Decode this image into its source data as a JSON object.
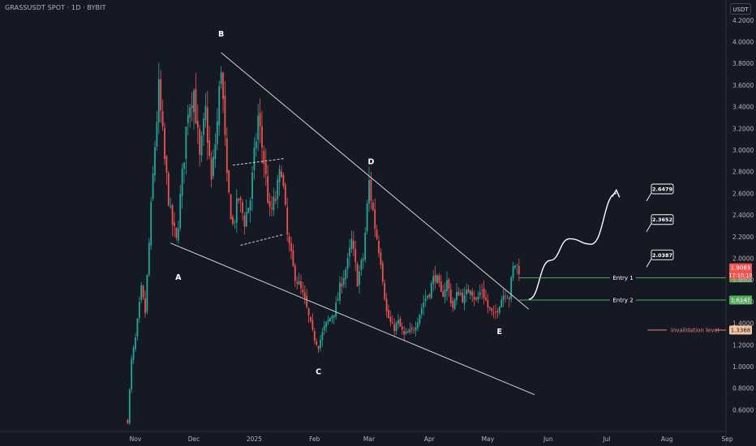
{
  "header": {
    "symbol_title": "GRASSUSDT SPOT · 1D · BYBIT",
    "currency": "USDT"
  },
  "colors": {
    "background": "#151924",
    "up": "#26a69a",
    "down": "#ef5350",
    "annotation": "#ffffff",
    "entry_line": "#4caf50",
    "invalidation_line": "#f77c80"
  },
  "chart_data": {
    "type": "candlestick",
    "x_axis_labels": [
      "Nov",
      "Dec",
      "2025",
      "Feb",
      "Mar",
      "Apr",
      "May",
      "Jun",
      "Jul",
      "Aug",
      "Sep"
    ],
    "y_axis_ticks": [
      "4.2000",
      "4.0000",
      "3.8000",
      "3.6000",
      "3.4000",
      "3.2000",
      "3.0000",
      "2.8000",
      "2.6000",
      "2.4000",
      "2.2000",
      "2.0000",
      "1.8000",
      "1.6000",
      "1.4000",
      "1.2000",
      "1.0000",
      "0.8000",
      "0.6000"
    ],
    "ylim": [
      0.45,
      4.3
    ],
    "grid": false,
    "price_path": [
      {
        "date": "2024-10-28",
        "price": 0.5
      },
      {
        "date": "2024-10-30",
        "price": 1.05
      },
      {
        "date": "2024-11-01",
        "price": 1.25
      },
      {
        "date": "2024-11-04",
        "price": 1.7
      },
      {
        "date": "2024-11-06",
        "price": 1.5
      },
      {
        "date": "2024-11-09",
        "price": 2.45
      },
      {
        "date": "2024-11-11",
        "price": 3.05
      },
      {
        "date": "2024-11-13",
        "price": 3.55
      },
      {
        "date": "2024-11-16",
        "price": 2.9
      },
      {
        "date": "2024-11-19",
        "price": 2.4
      },
      {
        "date": "2024-11-22",
        "price": 2.15
      },
      {
        "date": "2024-11-25",
        "price": 2.75
      },
      {
        "date": "2024-11-28",
        "price": 3.4
      },
      {
        "date": "2024-12-01",
        "price": 3.55
      },
      {
        "date": "2024-12-04",
        "price": 2.9
      },
      {
        "date": "2024-12-07",
        "price": 3.35
      },
      {
        "date": "2024-12-10",
        "price": 2.7
      },
      {
        "date": "2024-12-13",
        "price": 3.25
      },
      {
        "date": "2024-12-15",
        "price": 3.8
      },
      {
        "date": "2024-12-18",
        "price": 2.7
      },
      {
        "date": "2024-12-21",
        "price": 2.3
      },
      {
        "date": "2024-12-24",
        "price": 2.55
      },
      {
        "date": "2024-12-27",
        "price": 2.35
      },
      {
        "date": "2024-12-30",
        "price": 2.55
      },
      {
        "date": "2025-01-03",
        "price": 3.3
      },
      {
        "date": "2025-01-06",
        "price": 2.9
      },
      {
        "date": "2025-01-09",
        "price": 2.4
      },
      {
        "date": "2025-01-12",
        "price": 2.55
      },
      {
        "date": "2025-01-15",
        "price": 2.85
      },
      {
        "date": "2025-01-18",
        "price": 2.2
      },
      {
        "date": "2025-01-21",
        "price": 1.9
      },
      {
        "date": "2025-01-24",
        "price": 1.75
      },
      {
        "date": "2025-01-27",
        "price": 1.6
      },
      {
        "date": "2025-01-31",
        "price": 1.3
      },
      {
        "date": "2025-02-03",
        "price": 1.2
      },
      {
        "date": "2025-02-06",
        "price": 1.35
      },
      {
        "date": "2025-02-09",
        "price": 1.45
      },
      {
        "date": "2025-02-12",
        "price": 1.55
      },
      {
        "date": "2025-02-15",
        "price": 1.8
      },
      {
        "date": "2025-02-18",
        "price": 1.95
      },
      {
        "date": "2025-02-20",
        "price": 2.15
      },
      {
        "date": "2025-02-23",
        "price": 1.8
      },
      {
        "date": "2025-02-26",
        "price": 2.0
      },
      {
        "date": "2025-03-01",
        "price": 2.7
      },
      {
        "date": "2025-03-04",
        "price": 2.3
      },
      {
        "date": "2025-03-07",
        "price": 2.0
      },
      {
        "date": "2025-03-10",
        "price": 1.5
      },
      {
        "date": "2025-03-13",
        "price": 1.35
      },
      {
        "date": "2025-03-16",
        "price": 1.4
      },
      {
        "date": "2025-03-19",
        "price": 1.28
      },
      {
        "date": "2025-03-23",
        "price": 1.32
      },
      {
        "date": "2025-03-26",
        "price": 1.45
      },
      {
        "date": "2025-03-29",
        "price": 1.6
      },
      {
        "date": "2025-04-01",
        "price": 1.7
      },
      {
        "date": "2025-04-04",
        "price": 1.85
      },
      {
        "date": "2025-04-07",
        "price": 1.65
      },
      {
        "date": "2025-04-10",
        "price": 1.78
      },
      {
        "date": "2025-04-13",
        "price": 1.55
      },
      {
        "date": "2025-04-16",
        "price": 1.7
      },
      {
        "date": "2025-04-19",
        "price": 1.62
      },
      {
        "date": "2025-04-22",
        "price": 1.75
      },
      {
        "date": "2025-04-25",
        "price": 1.6
      },
      {
        "date": "2025-04-28",
        "price": 1.72
      },
      {
        "date": "2025-05-01",
        "price": 1.55
      },
      {
        "date": "2025-05-04",
        "price": 1.45
      },
      {
        "date": "2025-05-07",
        "price": 1.6
      },
      {
        "date": "2025-05-10",
        "price": 1.7
      },
      {
        "date": "2025-05-12",
        "price": 1.65
      },
      {
        "date": "2025-05-14",
        "price": 1.9
      },
      {
        "date": "2025-05-15",
        "price": 1.95
      },
      {
        "date": "2025-05-17",
        "price": 1.91
      }
    ],
    "wave_labels": [
      {
        "label": "A",
        "date": "2024-11-23",
        "price": 1.8
      },
      {
        "label": "B",
        "date": "2024-12-15",
        "price": 4.05
      },
      {
        "label": "C",
        "date": "2025-02-03",
        "price": 0.93
      },
      {
        "label": "D",
        "date": "2025-03-02",
        "price": 2.87
      },
      {
        "label": "E",
        "date": "2025-05-07",
        "price": 1.3
      }
    ],
    "trendlines": [
      {
        "name": "upper-resistance",
        "from": {
          "date": "2024-12-15",
          "price": 3.9
        },
        "to": {
          "date": "2025-05-22",
          "price": 1.53
        }
      },
      {
        "name": "lower-support",
        "from": {
          "date": "2024-11-19",
          "price": 2.14
        },
        "to": {
          "date": "2025-05-25",
          "price": 0.74
        }
      }
    ],
    "flag_lines": [
      {
        "from": {
          "date": "2024-12-21",
          "price": 2.86
        },
        "to": {
          "date": "2025-01-16",
          "price": 2.92
        }
      },
      {
        "from": {
          "date": "2024-12-25",
          "price": 2.12
        },
        "to": {
          "date": "2025-01-16",
          "price": 2.22
        }
      }
    ],
    "projection_path": [
      {
        "date": "2025-05-22",
        "price": 1.62
      },
      {
        "date": "2025-06-02",
        "price": 1.98
      },
      {
        "date": "2025-06-12",
        "price": 2.18
      },
      {
        "date": "2025-06-23",
        "price": 2.13
      },
      {
        "date": "2025-07-06",
        "price": 2.6
      }
    ],
    "targets": [
      {
        "label": "2.6479",
        "date": "2025-07-24",
        "price": 2.6479
      },
      {
        "label": "2.3652",
        "date": "2025-07-24",
        "price": 2.3652
      },
      {
        "label": "2.0387",
        "date": "2025-07-24",
        "price": 2.0387
      }
    ],
    "horizontal_levels": [
      {
        "name": "entry-1",
        "label": "Entry 1",
        "price": 1.8194,
        "tag": "1.8194",
        "color": "#4caf50"
      },
      {
        "name": "entry-2",
        "label": "Entry 2",
        "price": 1.6147,
        "tag": "1.6147",
        "color": "#4caf50"
      },
      {
        "name": "invalidation",
        "label": "invalidation level",
        "price": 1.3368,
        "tag": "1.3368",
        "color": "#f77c80"
      }
    ],
    "current_price": {
      "value": "1.9083",
      "countdown": "17:10:10"
    }
  }
}
